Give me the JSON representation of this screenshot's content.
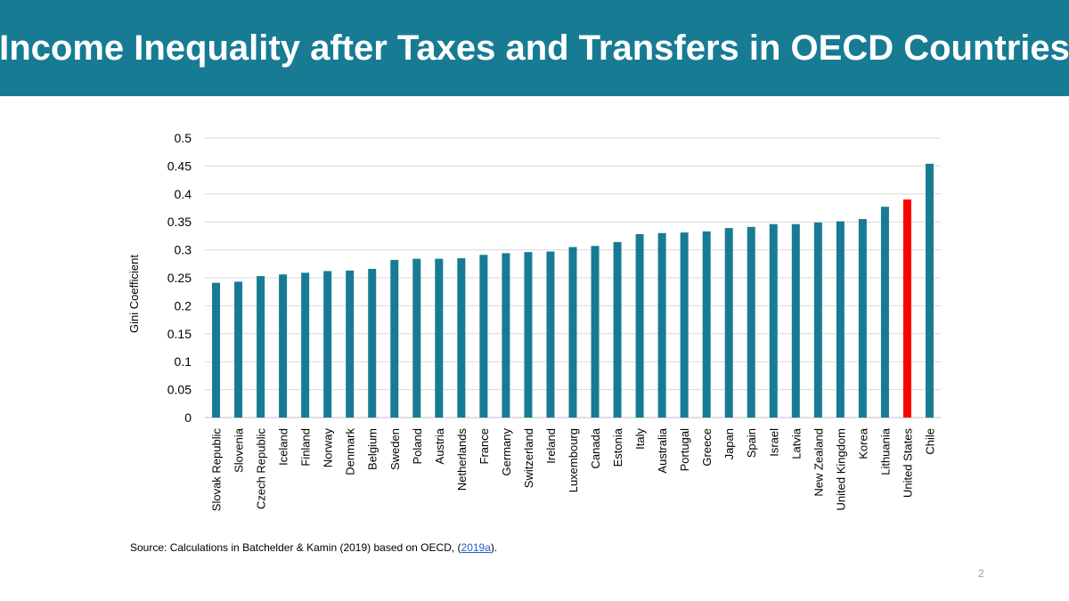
{
  "slide": {
    "title": "Income Inequality after Taxes and Transfers in OECD Countries",
    "page_number": "2",
    "title_bar_color": "#177b94"
  },
  "source": {
    "prefix": "Source: Calculations in Batchelder & Kamin (2019)  based on OECD, (",
    "link_text": "2019a",
    "suffix": ")."
  },
  "chart_data": {
    "type": "bar",
    "title": "",
    "xlabel": "",
    "ylabel": "Gini Coefficient",
    "ylim": [
      0,
      0.5
    ],
    "yticks": [
      "0",
      "0.05",
      "0.1",
      "0.15",
      "0.2",
      "0.25",
      "0.3",
      "0.35",
      "0.4",
      "0.45",
      "0.5"
    ],
    "grid": true,
    "bar_color": "#177b94",
    "highlight_color": "#ff0000",
    "highlight_category": "United States",
    "categories": [
      "Slovak Republic",
      "Slovenia",
      "Czech Republic",
      "Iceland",
      "Finland",
      "Norway",
      "Denmark",
      "Belgium",
      "Sweden",
      "Poland",
      "Austria",
      "Netherlands",
      "France",
      "Germany",
      "Switzerland",
      "Ireland",
      "Luxembourg",
      "Canada",
      "Estonia",
      "Italy",
      "Australia",
      "Portugal",
      "Greece",
      "Japan",
      "Spain",
      "Israel",
      "Latvia",
      "New Zealand",
      "United Kingdom",
      "Korea",
      "Lithuania",
      "United States",
      "Chile"
    ],
    "values": [
      0.241,
      0.243,
      0.253,
      0.256,
      0.259,
      0.262,
      0.263,
      0.266,
      0.282,
      0.284,
      0.284,
      0.285,
      0.291,
      0.294,
      0.296,
      0.297,
      0.305,
      0.307,
      0.314,
      0.328,
      0.33,
      0.331,
      0.333,
      0.339,
      0.341,
      0.346,
      0.346,
      0.349,
      0.351,
      0.355,
      0.377,
      0.39,
      0.454
    ]
  }
}
